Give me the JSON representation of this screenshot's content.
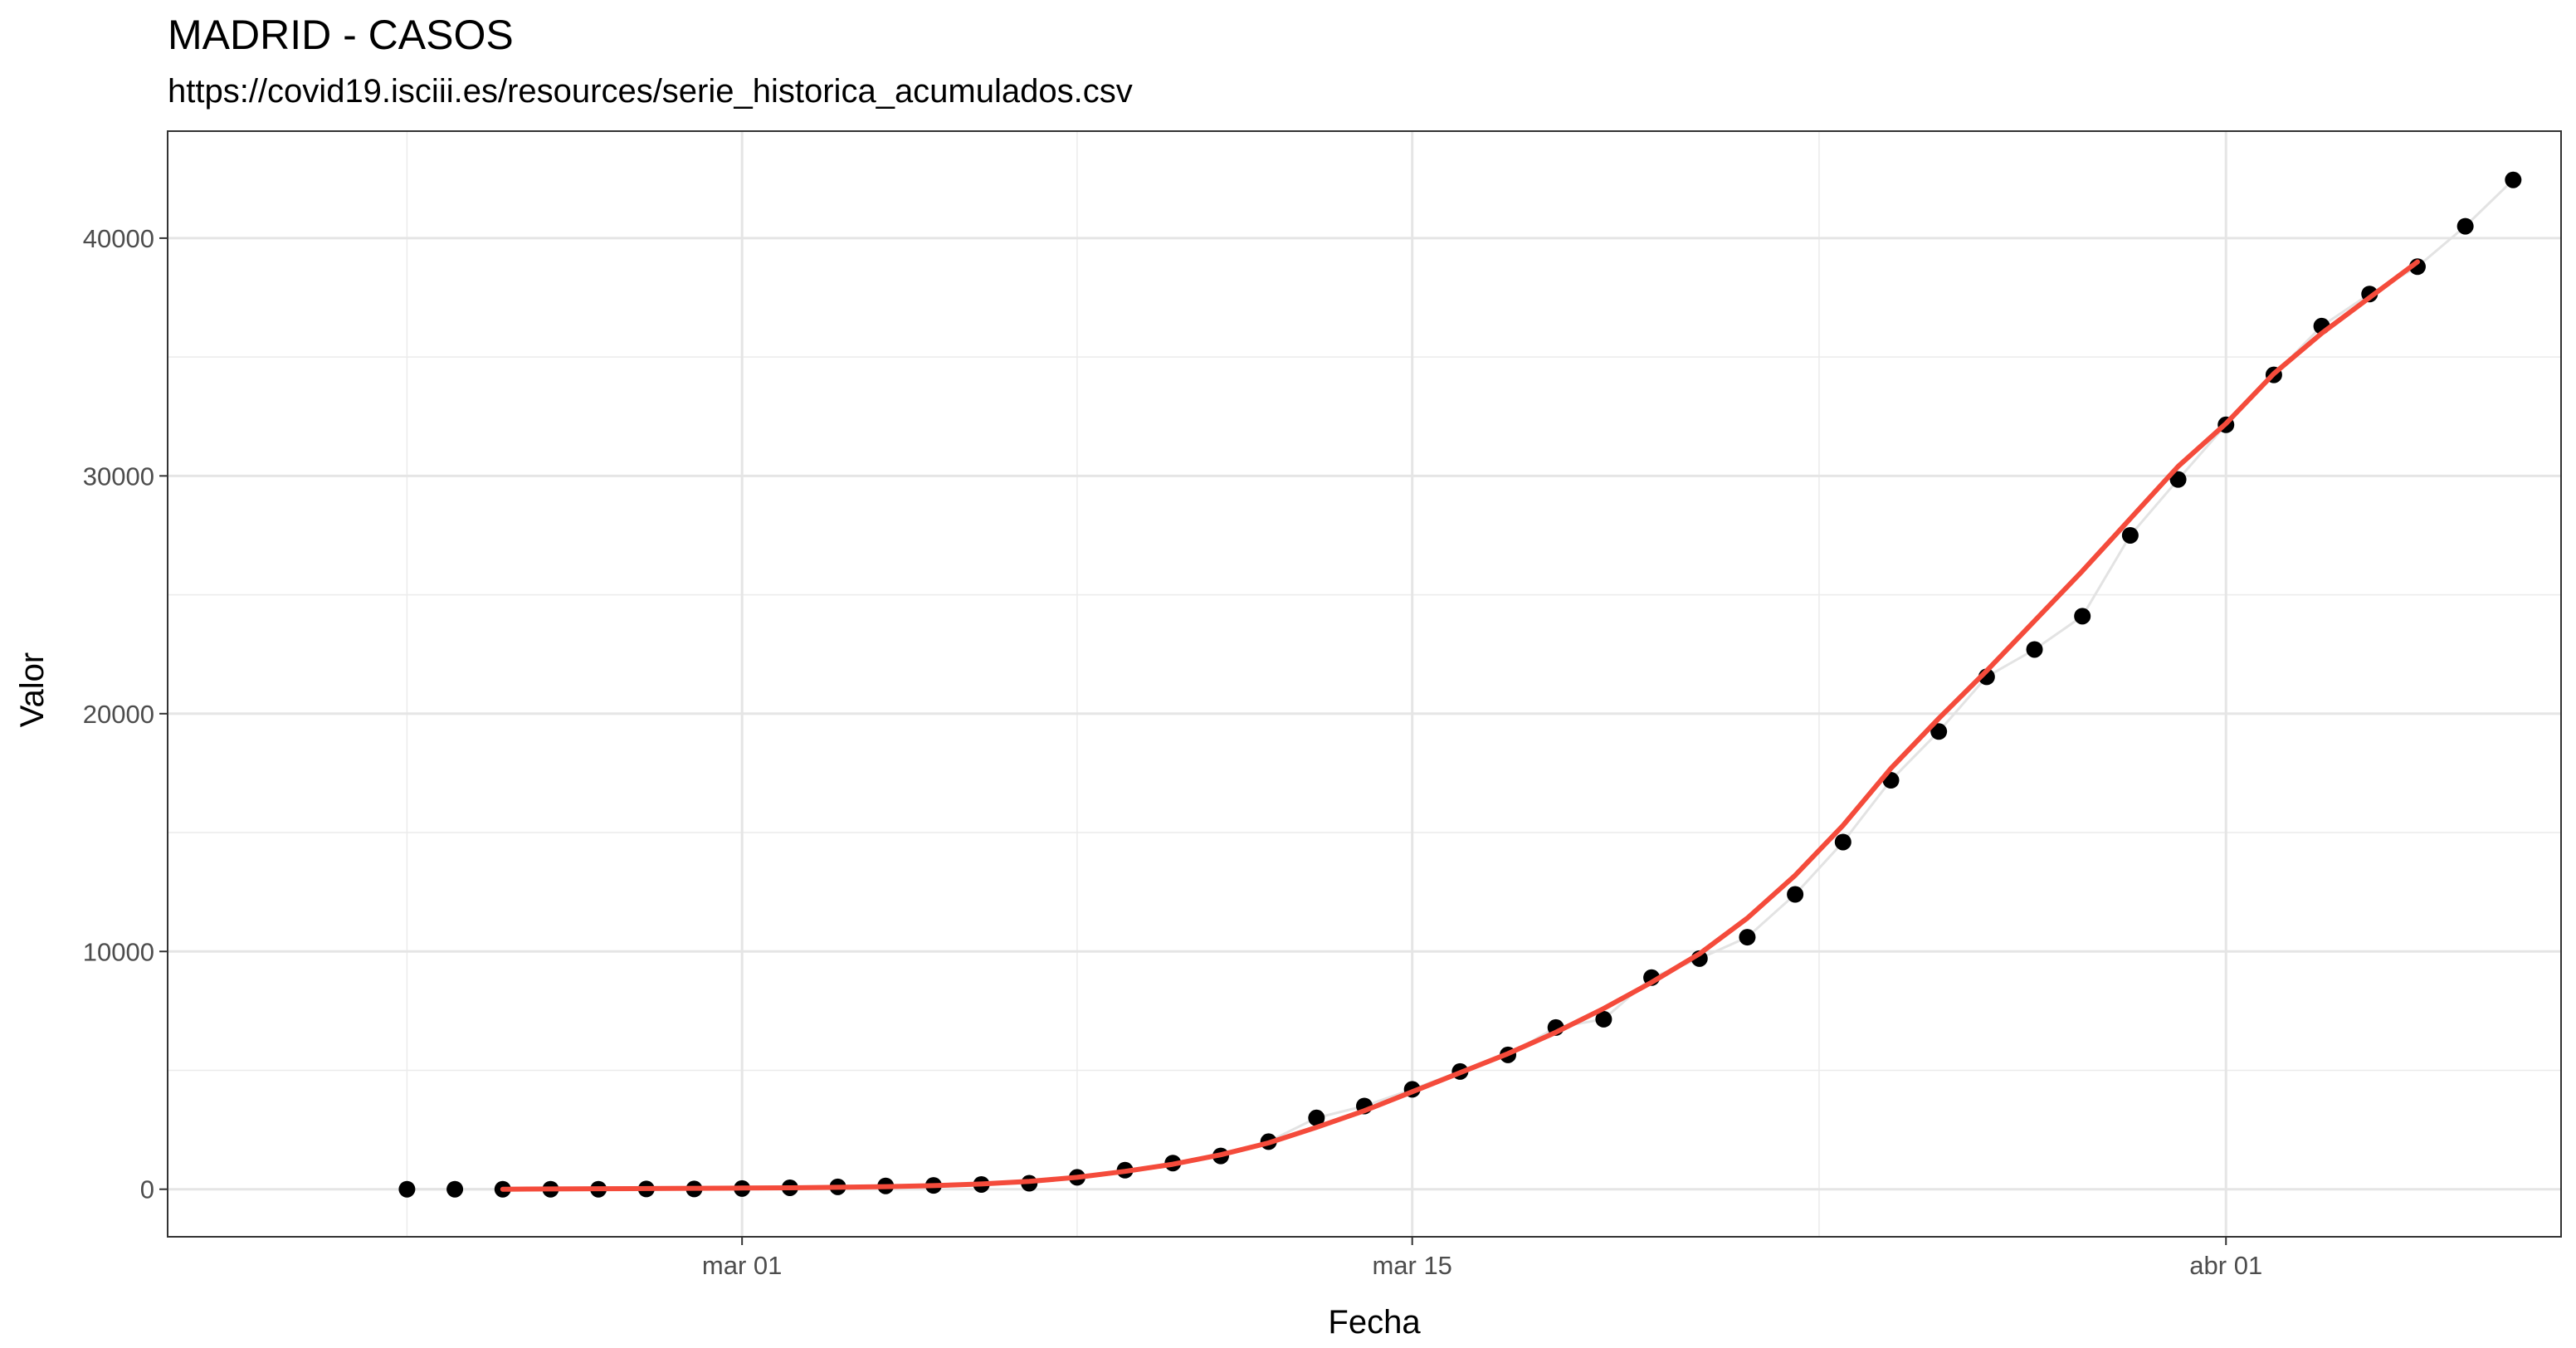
{
  "chart_data": {
    "type": "scatter",
    "title": "MADRID - CASOS",
    "subtitle": "https://covid19.isciii.es/resources/serie_historica_acumulados.csv",
    "xlabel": "Fecha",
    "ylabel": "Valor",
    "xlim": [
      "2020-02-18",
      "2020-04-08"
    ],
    "ylim": [
      -2000,
      44500
    ],
    "y_ticks": [
      0,
      10000,
      20000,
      30000,
      40000
    ],
    "y_tick_labels": [
      "0",
      "10000",
      "20000",
      "30000",
      "40000"
    ],
    "x_ticks": [
      "2020-03-01",
      "2020-03-15",
      "2020-04-01"
    ],
    "x_tick_labels": [
      "mar 01",
      "mar 15",
      "abr 01"
    ],
    "grid": true,
    "series": [
      {
        "type": "scatter",
        "color": "#000000",
        "x": [
          "2020-02-23",
          "2020-02-24",
          "2020-02-25",
          "2020-02-26",
          "2020-02-27",
          "2020-02-28",
          "2020-02-29",
          "2020-03-01",
          "2020-03-02",
          "2020-03-03",
          "2020-03-04",
          "2020-03-05",
          "2020-03-06",
          "2020-03-07",
          "2020-03-08",
          "2020-03-09",
          "2020-03-10",
          "2020-03-11",
          "2020-03-12",
          "2020-03-13",
          "2020-03-14",
          "2020-03-15",
          "2020-03-16",
          "2020-03-17",
          "2020-03-18",
          "2020-03-19",
          "2020-03-20",
          "2020-03-21",
          "2020-03-22",
          "2020-03-23",
          "2020-03-24",
          "2020-03-25",
          "2020-03-26",
          "2020-03-27",
          "2020-03-28",
          "2020-03-29",
          "2020-03-30",
          "2020-03-31",
          "2020-04-01",
          "2020-04-02",
          "2020-04-03",
          "2020-04-04",
          "2020-04-05",
          "2020-04-06",
          "2020-04-07"
        ],
        "y": [
          0,
          0,
          0,
          0,
          0,
          10,
          10,
          30,
          60,
          100,
          140,
          160,
          200,
          250,
          500,
          800,
          1100,
          1400,
          2000,
          3000,
          3500,
          4200,
          4950,
          5650,
          6800,
          7150,
          8900,
          9700,
          10600,
          12400,
          14600,
          17200,
          19250,
          21550,
          22700,
          24100,
          27500,
          29850,
          32150,
          34250,
          36300,
          37650,
          38800,
          40500,
          42450
        ]
      },
      {
        "type": "line",
        "color": "#f44b3b",
        "x": [
          "2020-02-25",
          "2020-02-26",
          "2020-02-27",
          "2020-02-28",
          "2020-02-29",
          "2020-03-01",
          "2020-03-02",
          "2020-03-03",
          "2020-03-04",
          "2020-03-05",
          "2020-03-06",
          "2020-03-07",
          "2020-03-08",
          "2020-03-09",
          "2020-03-10",
          "2020-03-11",
          "2020-03-12",
          "2020-03-13",
          "2020-03-14",
          "2020-03-15",
          "2020-03-16",
          "2020-03-17",
          "2020-03-18",
          "2020-03-19",
          "2020-03-20",
          "2020-03-21",
          "2020-03-22",
          "2020-03-23",
          "2020-03-24",
          "2020-03-25",
          "2020-03-26",
          "2020-03-27",
          "2020-03-28",
          "2020-03-29",
          "2020-03-30",
          "2020-03-31",
          "2020-04-01",
          "2020-04-02",
          "2020-04-03",
          "2020-04-04",
          "2020-04-05"
        ],
        "y": [
          0,
          10,
          20,
          30,
          40,
          50,
          60,
          80,
          110,
          150,
          220,
          330,
          500,
          750,
          1050,
          1450,
          1950,
          2600,
          3300,
          4100,
          4900,
          5700,
          6600,
          7600,
          8700,
          9900,
          11400,
          13200,
          15300,
          17700,
          19800,
          21800,
          23900,
          26000,
          28200,
          30400,
          32200,
          34300,
          36000,
          37500,
          39000
        ]
      }
    ]
  }
}
